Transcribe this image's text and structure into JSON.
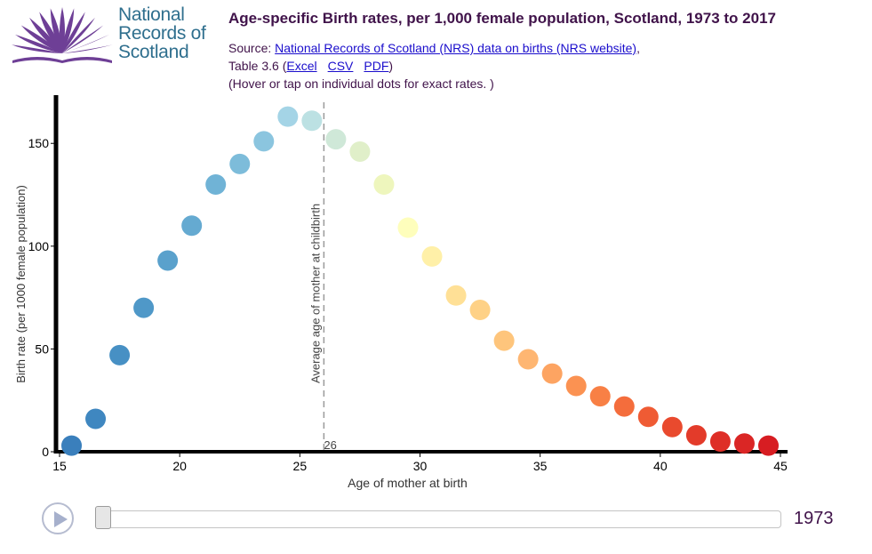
{
  "logo": {
    "lines": [
      "National",
      "Records of",
      "Scotland"
    ]
  },
  "header": {
    "title": "Age-specific Birth rates, per 1,000 female population, Scotland, 1973 to 2017",
    "source_prefix": "Source: ",
    "source_link": "National Records of Scotland (NRS) data on births (NRS website)",
    "source_suffix": ",",
    "table_prefix": "Table 3.6 (",
    "link_excel": "Excel",
    "link_csv": "CSV",
    "link_pdf": "PDF",
    "table_suffix": ")",
    "hint": "(Hover or tap on individual dots for exact rates. )"
  },
  "chart_data": {
    "type": "scatter",
    "xlabel": "Age of mother at birth",
    "ylabel": "Birth rate (per 1000 female population)",
    "xlim": [
      15,
      45
    ],
    "ylim": [
      0,
      170
    ],
    "xticks": [
      15,
      20,
      25,
      30,
      35,
      40,
      45
    ],
    "yticks": [
      0,
      50,
      100,
      150
    ],
    "x": [
      15.5,
      16.5,
      17.5,
      18.5,
      19.5,
      20.5,
      21.5,
      22.5,
      23.5,
      24.5,
      25.5,
      26.5,
      27.5,
      28.5,
      29.5,
      30.5,
      31.5,
      32.5,
      33.5,
      34.5,
      35.5,
      36.5,
      37.5,
      38.5,
      39.5,
      40.5,
      41.5,
      42.5,
      43.5,
      44.5
    ],
    "y": [
      3,
      16,
      47,
      70,
      93,
      110,
      130,
      140,
      151,
      163,
      161,
      152,
      146,
      130,
      109,
      95,
      76,
      69,
      54,
      45,
      38,
      32,
      27,
      22,
      17,
      12,
      8,
      5,
      4,
      3
    ],
    "colors": [
      "#3a7fbc",
      "#3f87c0",
      "#4790c4",
      "#4f98c8",
      "#5aa1cc",
      "#65aad1",
      "#70b3d6",
      "#7dbcda",
      "#8bc5df",
      "#a4d4e6",
      "#bce1e3",
      "#cfe8d8",
      "#e0efc9",
      "#eef6bd",
      "#fefebc",
      "#fff0a8",
      "#ffe096",
      "#fed186",
      "#fec57c",
      "#feb672",
      "#fda462",
      "#fb9252",
      "#f88045",
      "#f46d3c",
      "#ef5b34",
      "#e94a2e",
      "#e33b2a",
      "#de2e27",
      "#da2625",
      "#d71d22"
    ],
    "reference_line": {
      "x": 26,
      "label": "Average age of mother at childbirth",
      "value_label": "26"
    }
  },
  "controls": {
    "year": "1973",
    "year_range": [
      1973,
      2017
    ]
  },
  "colors": {
    "title": "#40134a",
    "logo_text": "#2f6f8e",
    "logo_fan": "#6e3f96",
    "link": "#1a0dcc"
  },
  "icons": {
    "play": "play-icon",
    "logo": "nrs-logo"
  }
}
